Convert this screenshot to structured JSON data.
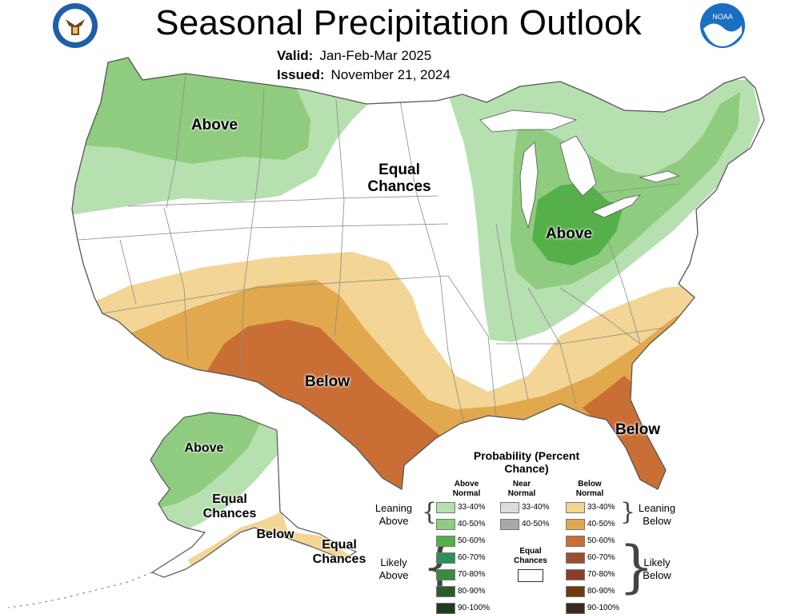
{
  "header": {
    "title": "Seasonal Precipitation Outlook",
    "valid_label": "Valid:",
    "valid_value": "Jan-Feb-Mar 2025",
    "issued_label": "Issued:",
    "issued_value": "November 21, 2024"
  },
  "logos": {
    "left": "commerce-seal-icon",
    "right": "noaa-logo-icon",
    "right_text": "NOAA"
  },
  "map_labels": {
    "northwest": "Above",
    "central": "Equal Chances",
    "great_lakes": "Above",
    "southwest": "Below",
    "florida": "Below",
    "alaska_north": "Above",
    "alaska_mid": "Equal Chances",
    "alaska_south": "Below",
    "alaska_aleutians": "Equal Chances"
  },
  "colors": {
    "above_33_40": "#b7e0b0",
    "above_40_50": "#8fcc7f",
    "above_50_60": "#55b04a",
    "above_60_70": "#2f8e5a",
    "above_70_80": "#3a8a40",
    "above_80_90": "#2c5a2c",
    "above_90_100": "#1d3d1d",
    "near_33_40": "#dcdcdc",
    "near_40_50": "#a8a8a8",
    "below_33_40": "#f3d595",
    "below_40_50": "#e1a84e",
    "below_50_60": "#c96f35",
    "below_60_70": "#9a5030",
    "below_70_80": "#8b3e28",
    "below_80_90": "#6e3a10",
    "below_90_100": "#3b2a22",
    "equal_chances": "#ffffff"
  },
  "legend": {
    "title": "Probability (Percent Chance)",
    "above_header": "Above Normal",
    "near_header": "Near Normal",
    "below_header": "Below Normal",
    "leaning_above": "Leaning Above",
    "likely_above": "Likely Above",
    "leaning_below": "Leaning Below",
    "likely_below": "Likely Below",
    "equal_chances": "Equal Chances",
    "above_bins": [
      "33-40%",
      "40-50%",
      "50-60%",
      "60-70%",
      "70-80%",
      "80-90%",
      "90-100%"
    ],
    "near_bins": [
      "33-40%",
      "40-50%"
    ],
    "below_bins": [
      "33-40%",
      "40-50%",
      "50-60%",
      "60-70%",
      "70-80%",
      "80-90%",
      "90-100%"
    ]
  }
}
